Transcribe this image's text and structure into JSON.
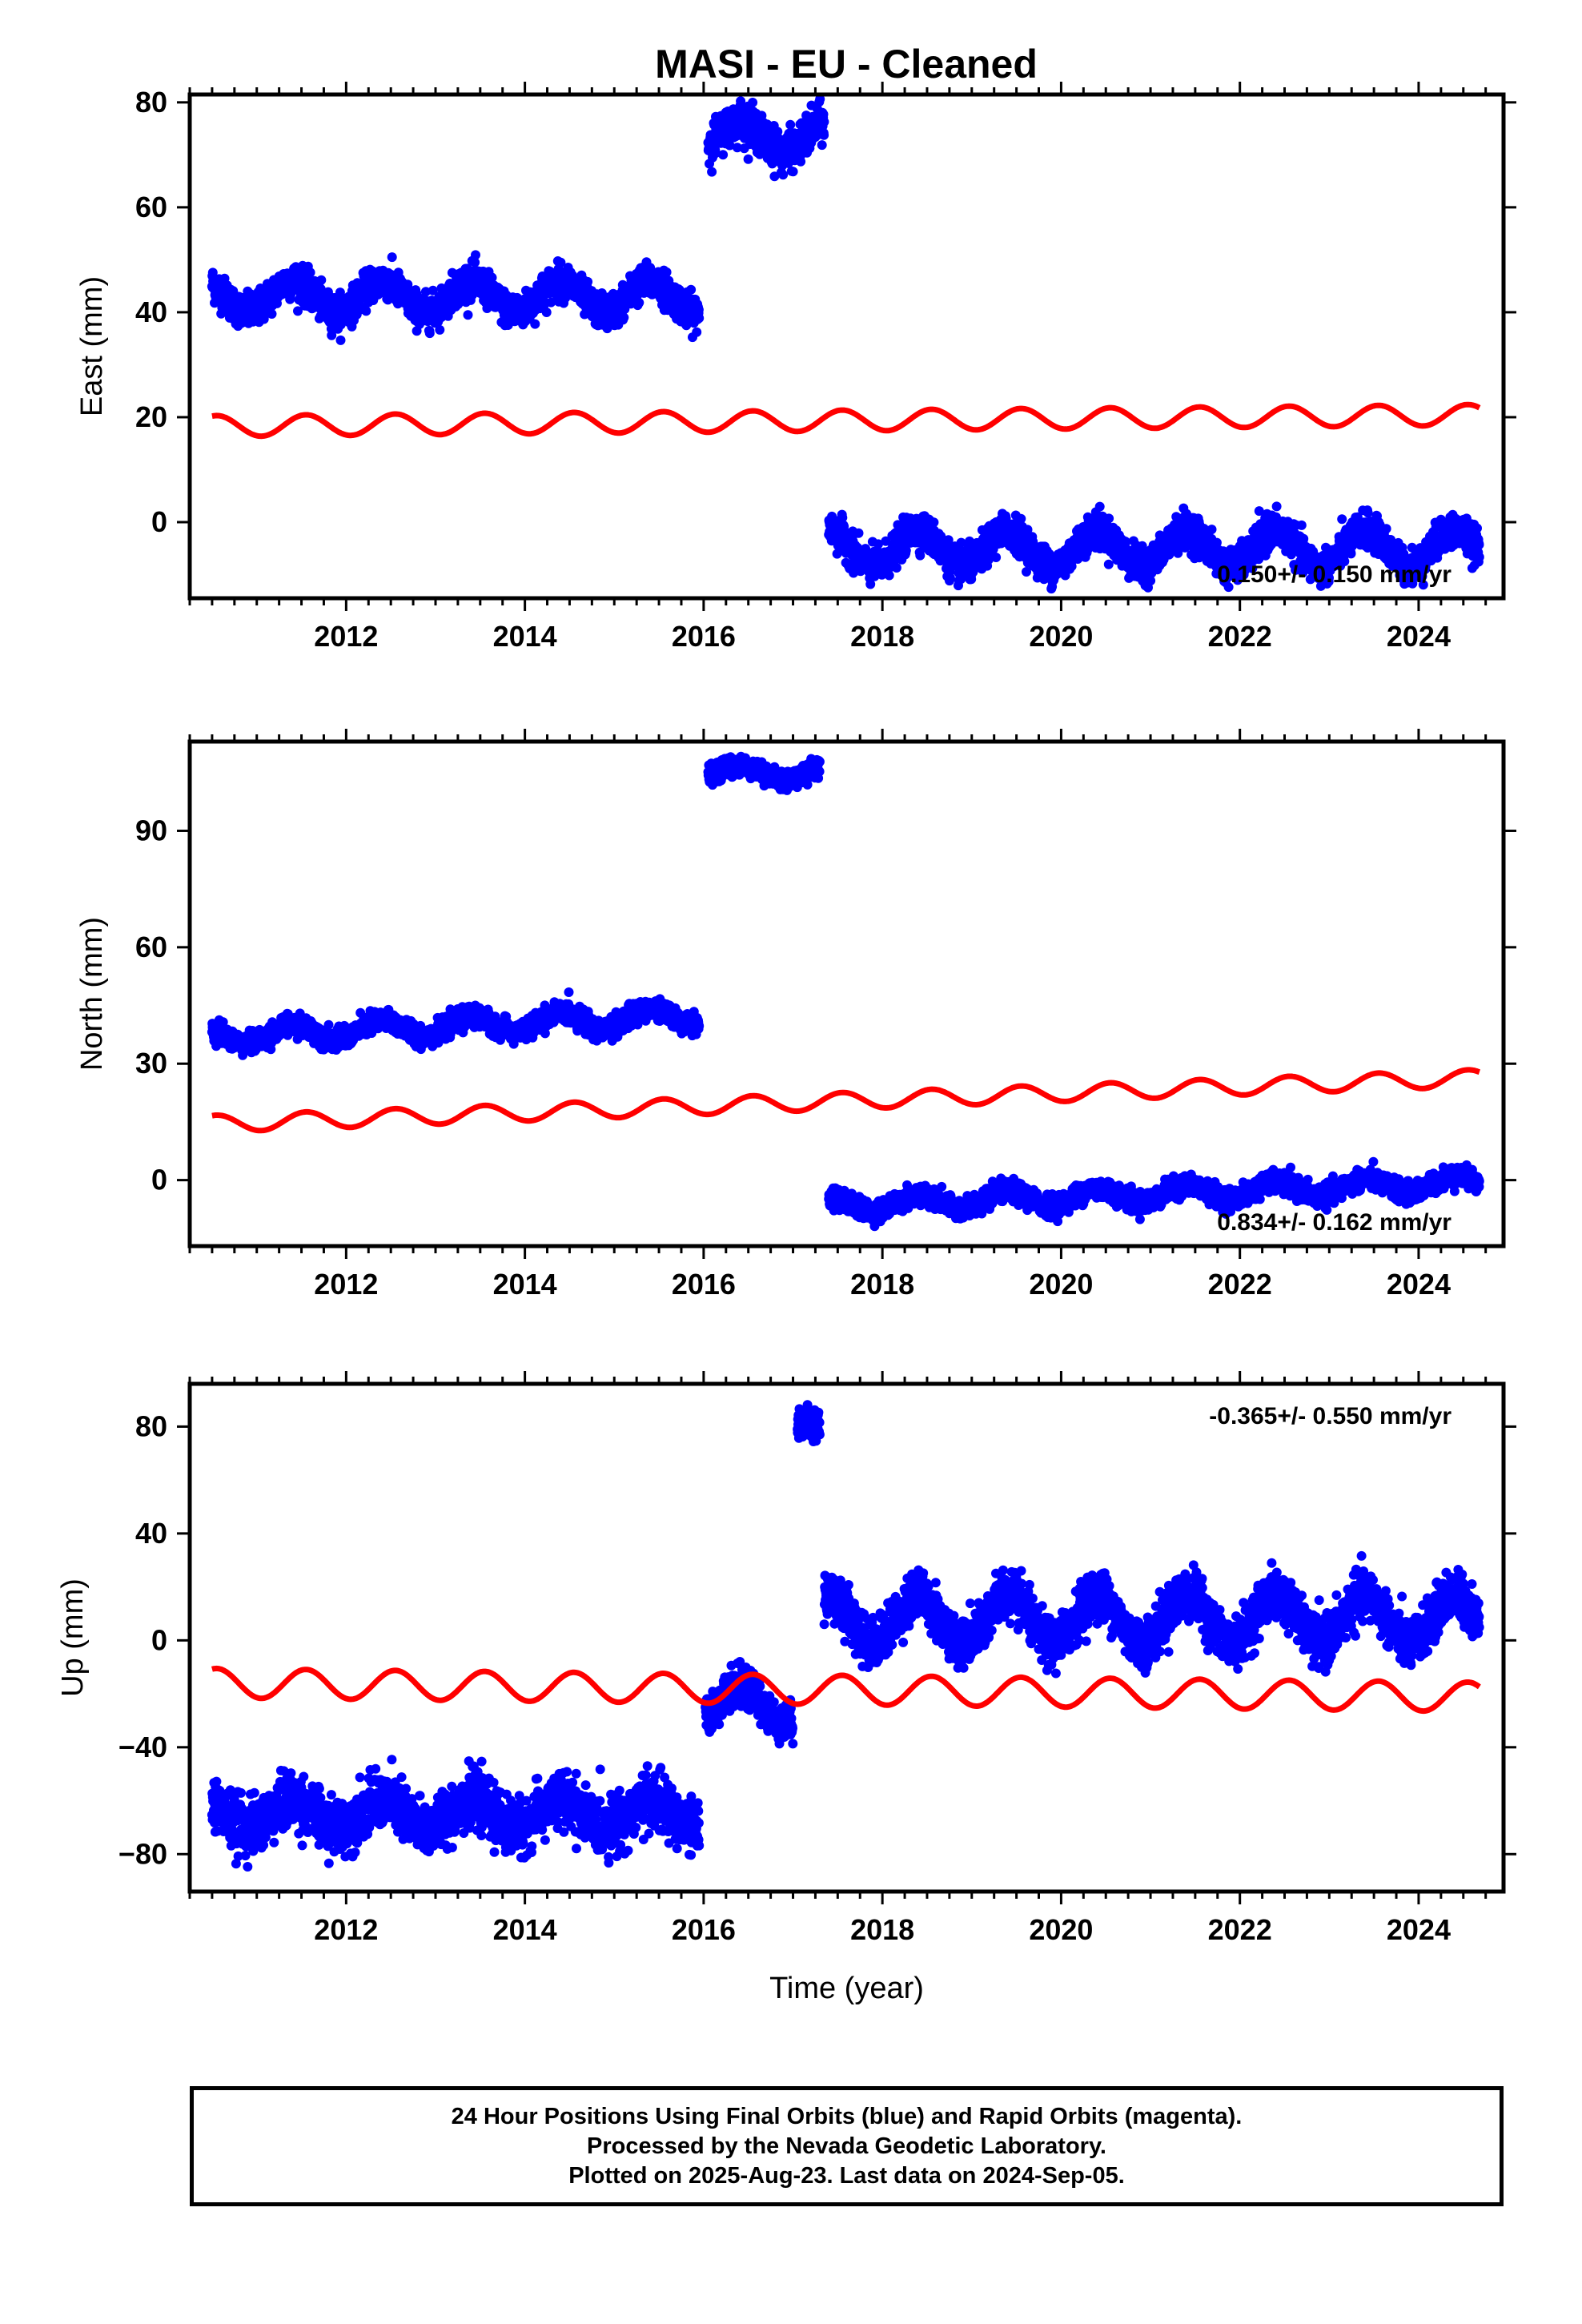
{
  "title": "MASI  - EU - Cleaned",
  "caption": {
    "line1": "24 Hour Positions Using Final Orbits (blue) and Rapid Orbits (magenta).",
    "line2": "Processed by the Nevada Geodetic Laboratory.",
    "line3": "Plotted on 2025-Aug-23. Last data on 2024-Sep-05."
  },
  "colors": {
    "observations": "#0000ff",
    "model": "#ff0000",
    "frame": "#000000"
  },
  "chart_data": [
    {
      "type": "scatter",
      "ylabel": "East (mm)",
      "xlabel": "",
      "xlim": [
        2010.25,
        2024.95
      ],
      "ylim": [
        -14.5,
        81.5
      ],
      "xticks": [
        2012,
        2014,
        2016,
        2018,
        2020,
        2022,
        2024
      ],
      "yticks": [
        0,
        20,
        40,
        60,
        80
      ],
      "annotation": "0.150+/- 0.150 mm/yr",
      "annotation_position": "bottom-right",
      "segments": [
        {
          "x_start": 2010.5,
          "x_end": 2015.95,
          "mean": 43.0,
          "amplitude": 3.0,
          "noise": 1.6
        },
        {
          "x_start": 2016.05,
          "x_end": 2017.35,
          "mean": 73.5,
          "amplitude": 3.0,
          "noise": 1.8
        },
        {
          "x_start": 2017.4,
          "x_end": 2024.68,
          "mean": -5.0,
          "amplitude": 3.5,
          "noise": 1.6
        }
      ],
      "model_line": {
        "intercept_at_2010_5": 18.3,
        "slope_per_year": 0.15,
        "amplitude": 2.0
      }
    },
    {
      "type": "scatter",
      "ylabel": "North (mm)",
      "xlabel": "",
      "xlim": [
        2010.25,
        2024.95
      ],
      "ylim": [
        -17,
        113
      ],
      "xticks": [
        2012,
        2014,
        2016,
        2018,
        2020,
        2022,
        2024
      ],
      "yticks": [
        0,
        30,
        60,
        90
      ],
      "annotation": "0.834+/- 0.162 mm/yr",
      "annotation_position": "bottom-right",
      "segments": [
        {
          "x_start": 2010.5,
          "x_end": 2015.95,
          "mean": 37.0,
          "amplitude": 2.2,
          "noise": 1.3,
          "trend": 1.0
        },
        {
          "x_start": 2016.05,
          "x_end": 2017.3,
          "mean": 105.0,
          "amplitude": 1.8,
          "noise": 1.2
        },
        {
          "x_start": 2017.4,
          "x_end": 2024.68,
          "mean": -6.5,
          "amplitude": 2.0,
          "noise": 1.3,
          "trend": 0.8
        }
      ],
      "model_line": {
        "intercept_at_2010_5": 14.5,
        "slope_per_year": 0.834,
        "amplitude": 2.2
      }
    },
    {
      "type": "scatter",
      "ylabel": "Up (mm)",
      "xlabel": "Time (year)",
      "xlim": [
        2010.25,
        2024.95
      ],
      "ylim": [
        -94,
        96
      ],
      "xticks": [
        2012,
        2014,
        2016,
        2018,
        2020,
        2022,
        2024
      ],
      "yticks": [
        -80,
        -40,
        0,
        40,
        80
      ],
      "annotation": "-0.365+/- 0.550 mm/yr",
      "annotation_position": "top-right",
      "segments": [
        {
          "x_start": 2010.5,
          "x_end": 2015.95,
          "mean": -65.0,
          "amplitude": 5.0,
          "noise": 5.0
        },
        {
          "x_start": 2016.02,
          "x_end": 2017.0,
          "mean": -24.0,
          "amplitude": 7.0,
          "noise": 3.5
        },
        {
          "x_start": 2017.05,
          "x_end": 2017.3,
          "mean": 81.0,
          "amplitude": 0.0,
          "noise": 3.0
        },
        {
          "x_start": 2017.35,
          "x_end": 2024.68,
          "mean": 8.0,
          "amplitude": 9.0,
          "noise": 4.5
        }
      ],
      "model_line": {
        "intercept_at_2010_5": -16.0,
        "slope_per_year": -0.365,
        "amplitude": 5.5
      }
    }
  ]
}
